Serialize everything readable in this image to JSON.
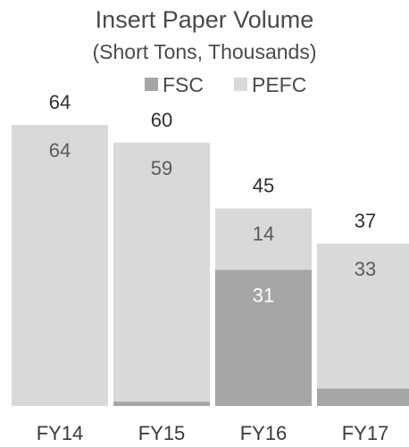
{
  "chart_data": {
    "type": "bar",
    "stacked": true,
    "title": "Insert Paper Volume",
    "subtitle": "(Short Tons, Thousands)",
    "xlabel": "",
    "ylabel": "",
    "categories": [
      "FY14",
      "FY15",
      "FY16",
      "FY17"
    ],
    "series": [
      {
        "name": "FSC",
        "color": "#a6a6a6",
        "values": [
          0,
          1,
          31,
          4
        ],
        "labels": [
          "",
          "",
          "31",
          ""
        ]
      },
      {
        "name": "PEFC",
        "color": "#d9d9d9",
        "values": [
          64,
          59,
          14,
          33
        ],
        "labels": [
          "64",
          "59",
          "14",
          "33"
        ]
      }
    ],
    "totals": [
      "64",
      "60",
      "45",
      "37"
    ],
    "ylim": [
      0,
      64
    ],
    "grid": false,
    "legend": "top-center"
  }
}
